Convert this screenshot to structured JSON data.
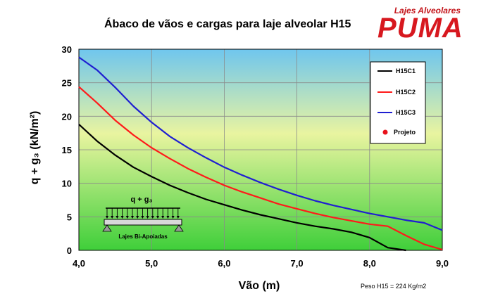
{
  "title": "Ábaco de vãos e cargas para laje alveolar H15",
  "logo": {
    "tagline": "Lajes Alveolares",
    "brand": "PUMA"
  },
  "note": "Peso H15  = 224 Kg/m2",
  "inset": {
    "load_label": "q + g₃",
    "support_label": "Lajes Bi-Apoiadas"
  },
  "colors": {
    "plot_top": "#6fc6ee",
    "plot_mid": "#e9f4a0",
    "plot_bottom": "#3fcf3a"
  },
  "chart_data": {
    "type": "line",
    "xlabel": "Vão (m)",
    "ylabel": "q + g₃ (kN/m²)",
    "xlim": [
      4.0,
      9.0
    ],
    "ylim": [
      0,
      30
    ],
    "xticks": [
      "4,0",
      "5,0",
      "6,0",
      "7,0",
      "8,0",
      "9,0"
    ],
    "yticks": [
      "0",
      "5",
      "10",
      "15",
      "20",
      "25",
      "30"
    ],
    "grid": true,
    "legend_position": "top-right",
    "series": [
      {
        "name": "H15C1",
        "color": "#000000",
        "x": [
          4.0,
          4.25,
          4.5,
          4.75,
          5.0,
          5.25,
          5.5,
          5.75,
          6.0,
          6.25,
          6.5,
          6.75,
          7.0,
          7.25,
          7.5,
          7.75,
          8.0,
          8.25,
          8.5
        ],
        "y": [
          18.8,
          16.3,
          14.2,
          12.4,
          11.0,
          9.7,
          8.6,
          7.6,
          6.8,
          6.0,
          5.3,
          4.7,
          4.1,
          3.6,
          3.2,
          2.7,
          1.9,
          0.4,
          0.0
        ]
      },
      {
        "name": "H15C2",
        "color": "#ff1a1a",
        "x": [
          4.0,
          4.25,
          4.5,
          4.75,
          5.0,
          5.25,
          5.5,
          5.75,
          6.0,
          6.25,
          6.5,
          6.75,
          7.0,
          7.25,
          7.5,
          7.75,
          8.0,
          8.25,
          8.5,
          8.75,
          9.0
        ],
        "y": [
          24.4,
          22.0,
          19.4,
          17.2,
          15.3,
          13.7,
          12.2,
          10.9,
          9.7,
          8.7,
          7.8,
          6.9,
          6.2,
          5.5,
          4.9,
          4.4,
          3.9,
          3.6,
          2.2,
          0.9,
          0.1
        ]
      },
      {
        "name": "H15C3",
        "color": "#1f1fd1",
        "x": [
          4.0,
          4.25,
          4.5,
          4.75,
          5.0,
          5.25,
          5.5,
          5.75,
          6.0,
          6.25,
          6.5,
          6.75,
          7.0,
          7.25,
          7.5,
          7.75,
          8.0,
          8.25,
          8.5,
          8.75,
          9.0
        ],
        "y": [
          28.8,
          26.9,
          24.3,
          21.5,
          19.1,
          17.0,
          15.3,
          13.8,
          12.4,
          11.2,
          10.1,
          9.1,
          8.2,
          7.4,
          6.7,
          6.1,
          5.5,
          5.0,
          4.5,
          4.1,
          3.0
        ]
      }
    ],
    "markers": [
      {
        "name": "Projeto",
        "color": "#e8111b"
      }
    ]
  }
}
